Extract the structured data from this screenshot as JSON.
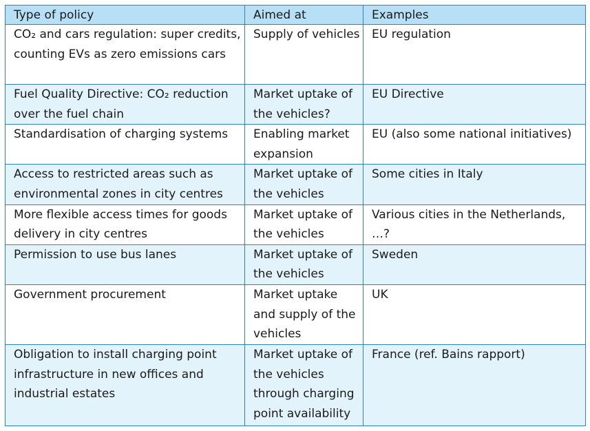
{
  "table": {
    "headers": [
      "Type of policy",
      "Aimed at",
      "Examples"
    ],
    "rows": [
      [
        "CO₂ and cars regulation: super credits, counting EVs as zero emissions cars",
        "Supply of vehicles",
        "EU regulation"
      ],
      [
        "Fuel Quality Directive: CO₂ reduction over the fuel chain",
        "Market uptake of the vehicles?",
        "EU Directive"
      ],
      [
        "Standardisation of charging systems",
        "Enabling market expansion",
        "EU (also some national initiatives)"
      ],
      [
        "Access to restricted areas such as environmental zones in city centres",
        "Market uptake of the vehicles",
        "Some cities in Italy"
      ],
      [
        "More flexible access times for goods delivery in city centres",
        "Market uptake of the vehicles",
        "Various cities in the Netherlands, …?"
      ],
      [
        "Permission to use bus lanes",
        "Market uptake of the vehicles",
        "Sweden"
      ],
      [
        "Government procurement",
        "Market uptake and supply of the vehicles",
        "UK"
      ],
      [
        "Obligation to install charging point infrastructure in new offices and industrial estates",
        "Market uptake of the vehicles through charging point availability",
        "France (ref. Bains rapport)"
      ]
    ]
  },
  "colors": {
    "header_bg": "#b7e0f6",
    "alt_row_bg": "#e3f3fb",
    "border": "#2f7fc1"
  }
}
